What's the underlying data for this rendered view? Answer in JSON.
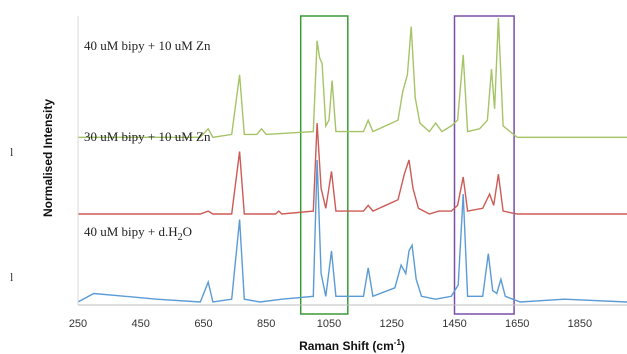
{
  "chart_data": {
    "type": "line",
    "xlabel": "Raman Shift (cm",
    "xlabel_sup": "-1",
    "xlabel_close": ")",
    "ylabel": "Normalised Intensity",
    "xlim": [
      250,
      2000
    ],
    "x_ticks": [
      "250",
      "450",
      "650",
      "850",
      "1050",
      "1250",
      "1450",
      "1650",
      "1850"
    ],
    "grid": false,
    "y_tick_labels": [
      "l",
      "l"
    ],
    "highlight_boxes": [
      {
        "x_range": [
          960,
          1110
        ],
        "color": "#3a9a3a"
      },
      {
        "x_range": [
          1450,
          1640
        ],
        "color": "#7a4fa8"
      }
    ],
    "series": [
      {
        "annotation": "40 uM bipy + 10 uM Zn",
        "color": "#a5c466",
        "baseline": 0.58,
        "points": [
          [
            250,
            0.58
          ],
          [
            640,
            0.58
          ],
          [
            665,
            0.61
          ],
          [
            680,
            0.58
          ],
          [
            740,
            0.59
          ],
          [
            765,
            0.8
          ],
          [
            780,
            0.59
          ],
          [
            820,
            0.59
          ],
          [
            835,
            0.61
          ],
          [
            850,
            0.59
          ],
          [
            1000,
            0.6
          ],
          [
            1012,
            0.92
          ],
          [
            1020,
            0.86
          ],
          [
            1028,
            0.84
          ],
          [
            1040,
            0.62
          ],
          [
            1050,
            0.64
          ],
          [
            1060,
            0.78
          ],
          [
            1072,
            0.6
          ],
          [
            1160,
            0.6
          ],
          [
            1175,
            0.64
          ],
          [
            1190,
            0.6
          ],
          [
            1270,
            0.64
          ],
          [
            1285,
            0.74
          ],
          [
            1300,
            0.8
          ],
          [
            1312,
            0.97
          ],
          [
            1325,
            0.72
          ],
          [
            1340,
            0.63
          ],
          [
            1370,
            0.6
          ],
          [
            1390,
            0.63
          ],
          [
            1410,
            0.6
          ],
          [
            1440,
            0.62
          ],
          [
            1460,
            0.64
          ],
          [
            1478,
            0.87
          ],
          [
            1492,
            0.6
          ],
          [
            1530,
            0.61
          ],
          [
            1555,
            0.64
          ],
          [
            1568,
            0.82
          ],
          [
            1578,
            0.68
          ],
          [
            1590,
            1.0
          ],
          [
            1605,
            0.62
          ],
          [
            1650,
            0.58
          ],
          [
            2000,
            0.58
          ]
        ]
      },
      {
        "annotation": "30 uM bipy + 10 uM Zn",
        "color": "#cd5a55",
        "baseline": 0.31,
        "points": [
          [
            250,
            0.31
          ],
          [
            640,
            0.31
          ],
          [
            665,
            0.32
          ],
          [
            680,
            0.31
          ],
          [
            740,
            0.31
          ],
          [
            765,
            0.53
          ],
          [
            780,
            0.31
          ],
          [
            880,
            0.31
          ],
          [
            890,
            0.32
          ],
          [
            900,
            0.31
          ],
          [
            1000,
            0.32
          ],
          [
            1012,
            0.63
          ],
          [
            1025,
            0.4
          ],
          [
            1040,
            0.33
          ],
          [
            1058,
            0.46
          ],
          [
            1072,
            0.32
          ],
          [
            1160,
            0.32
          ],
          [
            1175,
            0.34
          ],
          [
            1190,
            0.32
          ],
          [
            1270,
            0.36
          ],
          [
            1290,
            0.45
          ],
          [
            1305,
            0.5
          ],
          [
            1318,
            0.4
          ],
          [
            1335,
            0.33
          ],
          [
            1370,
            0.31
          ],
          [
            1400,
            0.32
          ],
          [
            1440,
            0.32
          ],
          [
            1460,
            0.34
          ],
          [
            1478,
            0.44
          ],
          [
            1492,
            0.32
          ],
          [
            1540,
            0.33
          ],
          [
            1562,
            0.38
          ],
          [
            1575,
            0.34
          ],
          [
            1590,
            0.45
          ],
          [
            1605,
            0.32
          ],
          [
            1650,
            0.31
          ],
          [
            2000,
            0.31
          ]
        ]
      },
      {
        "annotation": "40 uM bipy + d.H",
        "annotation_sub": "2",
        "annotation_end": "O",
        "color": "#5b9bd5",
        "baseline": 0.0,
        "points": [
          [
            250,
            0.0
          ],
          [
            300,
            0.03
          ],
          [
            400,
            0.02
          ],
          [
            500,
            0.01
          ],
          [
            640,
            0.0
          ],
          [
            665,
            0.07
          ],
          [
            680,
            0.0
          ],
          [
            740,
            0.01
          ],
          [
            765,
            0.29
          ],
          [
            780,
            0.01
          ],
          [
            830,
            0.0
          ],
          [
            900,
            0.01
          ],
          [
            1000,
            0.02
          ],
          [
            1012,
            0.5
          ],
          [
            1025,
            0.1
          ],
          [
            1040,
            0.02
          ],
          [
            1058,
            0.18
          ],
          [
            1072,
            0.02
          ],
          [
            1160,
            0.02
          ],
          [
            1175,
            0.12
          ],
          [
            1190,
            0.02
          ],
          [
            1260,
            0.05
          ],
          [
            1280,
            0.13
          ],
          [
            1295,
            0.1
          ],
          [
            1305,
            0.18
          ],
          [
            1315,
            0.2
          ],
          [
            1328,
            0.08
          ],
          [
            1345,
            0.02
          ],
          [
            1390,
            0.01
          ],
          [
            1440,
            0.02
          ],
          [
            1462,
            0.06
          ],
          [
            1478,
            0.38
          ],
          [
            1492,
            0.02
          ],
          [
            1540,
            0.02
          ],
          [
            1558,
            0.17
          ],
          [
            1572,
            0.04
          ],
          [
            1585,
            0.03
          ],
          [
            1598,
            0.08
          ],
          [
            1612,
            0.02
          ],
          [
            1660,
            0.0
          ],
          [
            1800,
            0.01
          ],
          [
            2000,
            0.0
          ]
        ]
      }
    ]
  }
}
